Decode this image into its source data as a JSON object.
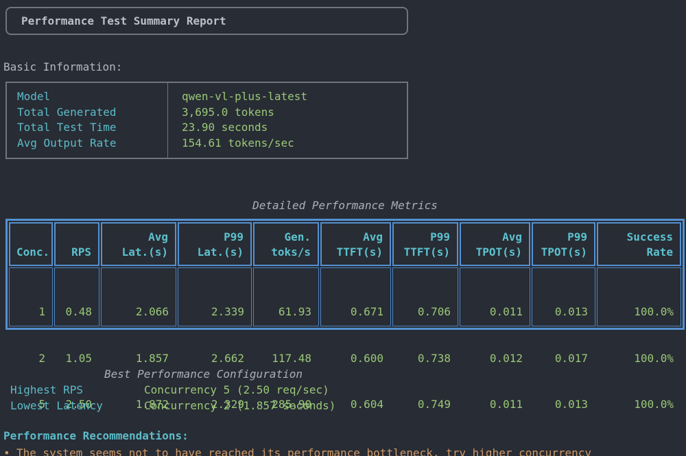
{
  "colors": {
    "background": "#282c34",
    "foreground": "#abb2bf",
    "label_cyan": "#5cbcc9",
    "value_green": "#9ac878",
    "recommendation_orange": "#d19a66",
    "metrics_border_blue": "#5591d2",
    "panel_border_gray": "#70757e"
  },
  "report": {
    "title": "Performance Test Summary Report"
  },
  "basic_info": {
    "heading": "Basic Information:",
    "rows": [
      {
        "label": "Model",
        "value": "qwen-vl-plus-latest"
      },
      {
        "label": "Total Generated",
        "value": "3,695.0 tokens"
      },
      {
        "label": "Total Test Time",
        "value": "23.90 seconds"
      },
      {
        "label": "Avg Output Rate",
        "value": "154.61 tokens/sec"
      }
    ]
  },
  "metrics": {
    "title": "Detailed Performance Metrics",
    "columns": [
      {
        "h1": "",
        "h2": "Conc.",
        "values": [
          "1",
          "2",
          "5"
        ]
      },
      {
        "h1": "",
        "h2": "RPS",
        "values": [
          "0.48",
          "1.05",
          "2.50"
        ]
      },
      {
        "h1": "Avg",
        "h2": "Lat.(s)",
        "values": [
          "2.066",
          "1.857",
          "1.872"
        ]
      },
      {
        "h1": "P99",
        "h2": "Lat.(s)",
        "values": [
          "2.339",
          "2.662",
          "2.329"
        ]
      },
      {
        "h1": "Gen.",
        "h2": "toks/s",
        "values": [
          "61.93",
          "117.48",
          "285.90"
        ]
      },
      {
        "h1": "Avg",
        "h2": "TTFT(s)",
        "values": [
          "0.671",
          "0.600",
          "0.604"
        ]
      },
      {
        "h1": "P99",
        "h2": "TTFT(s)",
        "values": [
          "0.706",
          "0.738",
          "0.749"
        ]
      },
      {
        "h1": "Avg",
        "h2": "TPOT(s)",
        "values": [
          "0.011",
          "0.012",
          "0.011"
        ]
      },
      {
        "h1": "P99",
        "h2": "TPOT(s)",
        "values": [
          "0.013",
          "0.017",
          "0.013"
        ]
      },
      {
        "h1": "Success",
        "h2": "Rate",
        "values": [
          "100.0%",
          "100.0%",
          "100.0%"
        ]
      }
    ]
  },
  "best_config": {
    "title": "Best Performance Configuration",
    "rows": [
      {
        "label": "Highest RPS",
        "value": "Concurrency 5 (2.50 req/sec)"
      },
      {
        "label": "Lowest Latency",
        "value": "Concurrency 2 (1.857 seconds)"
      }
    ]
  },
  "recommendations": {
    "heading": "Performance Recommendations:",
    "bullet": "•",
    "items": [
      "The system seems not to have reached its performance bottleneck, try higher concurrency"
    ]
  }
}
